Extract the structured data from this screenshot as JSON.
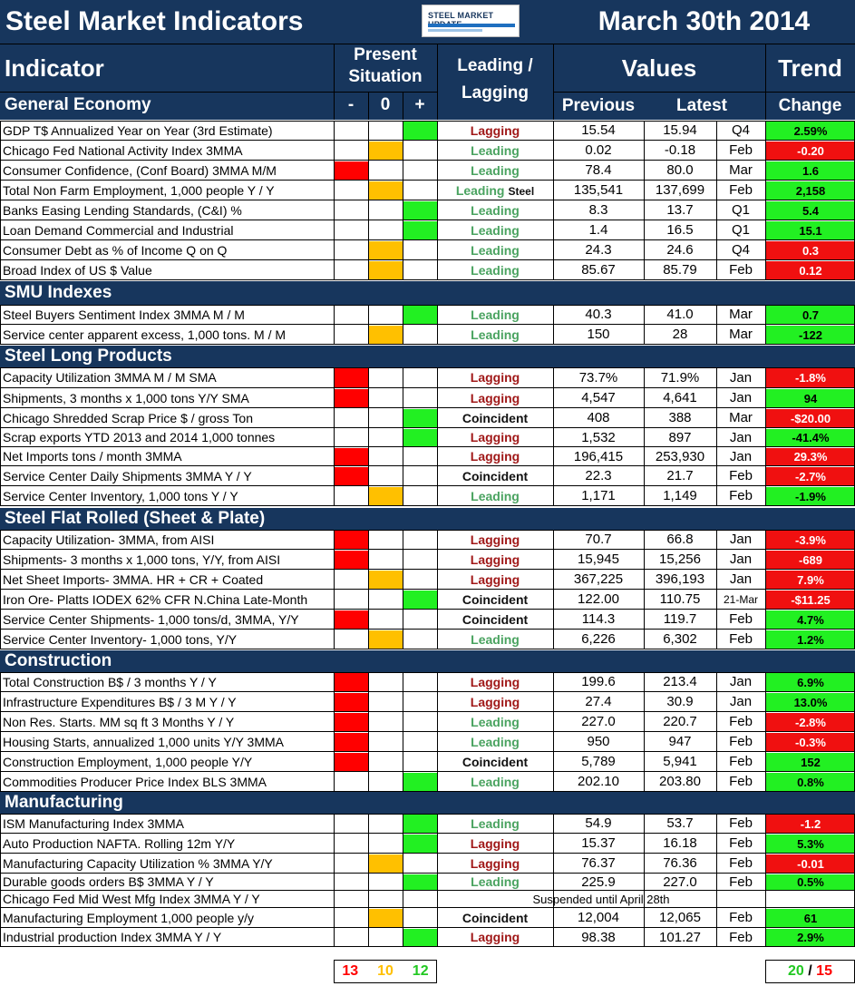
{
  "header": {
    "title": "Steel Market Indicators",
    "logo_text": "STEEL MARKET UPDATE",
    "date": "March 30th 2014"
  },
  "columns": {
    "indicator": "Indicator",
    "present_situation": "Present Situation",
    "leading_lagging": "Leading / Lagging",
    "values": "Values",
    "trend": "Trend",
    "minus": "-",
    "zero": "0",
    "plus": "+",
    "previous": "Previous",
    "latest": "Latest",
    "change": "Change"
  },
  "sections": [
    {
      "name": "General Economy",
      "rows": [
        {
          "indicator": "GDP T$ Annualized Year on Year (3rd Estimate)",
          "situation": "plus",
          "ll": "Lagging",
          "extra": "",
          "previous": "15.54",
          "latest": "15.94",
          "period": "Q4",
          "change": "2.59%",
          "change_color": "green"
        },
        {
          "indicator": "Chicago Fed National Activity Index 3MMA",
          "situation": "zero",
          "ll": "Leading",
          "extra": "",
          "previous": "0.02",
          "latest": "-0.18",
          "period": "Feb",
          "change": "-0.20",
          "change_color": "red"
        },
        {
          "indicator": "Consumer Confidence, (Conf Board) 3MMA M/M",
          "situation": "minus",
          "ll": "Leading",
          "extra": "",
          "previous": "78.4",
          "latest": "80.0",
          "period": "Mar",
          "change": "1.6",
          "change_color": "green"
        },
        {
          "indicator": "Total Non Farm Employment, 1,000 people Y / Y",
          "situation": "zero",
          "ll": "Leading",
          "extra": "Steel",
          "previous": "135,541",
          "latest": "137,699",
          "period": "Feb",
          "change": "2,158",
          "change_color": "green"
        },
        {
          "indicator": "Banks Easing Lending Standards, (C&I) %",
          "situation": "plus",
          "ll": "Leading",
          "extra": "",
          "previous": "8.3",
          "latest": "13.7",
          "period": "Q1",
          "change": "5.4",
          "change_color": "green"
        },
        {
          "indicator": "Loan Demand Commercial and Industrial",
          "situation": "plus",
          "ll": "Leading",
          "extra": "",
          "previous": "1.4",
          "latest": "16.5",
          "period": "Q1",
          "change": "15.1",
          "change_color": "green"
        },
        {
          "indicator": "Consumer Debt as % of Income Q on Q",
          "situation": "zero",
          "ll": "Leading",
          "extra": "",
          "previous": "24.3",
          "latest": "24.6",
          "period": "Q4",
          "change": "0.3",
          "change_color": "red"
        },
        {
          "indicator": "Broad Index of US $ Value",
          "situation": "zero",
          "ll": "Leading",
          "extra": "",
          "previous": "85.67",
          "latest": "85.79",
          "period": "Feb",
          "change": "0.12",
          "change_color": "red"
        }
      ]
    },
    {
      "name": "SMU Indexes",
      "rows": [
        {
          "indicator": "Steel Buyers Sentiment Index 3MMA M / M",
          "situation": "plus",
          "ll": "Leading",
          "extra": "",
          "previous": "40.3",
          "latest": "41.0",
          "period": "Mar",
          "change": "0.7",
          "change_color": "green"
        },
        {
          "indicator": "Service center apparent excess, 1,000 tons. M / M",
          "situation": "zero",
          "ll": "Leading",
          "extra": "",
          "previous": "150",
          "latest": "28",
          "period": "Mar",
          "change": "-122",
          "change_color": "green"
        }
      ]
    },
    {
      "name": "Steel Long Products",
      "rows": [
        {
          "indicator": "Capacity Utilization 3MMA  M / M SMA",
          "situation": "minus",
          "ll": "Lagging",
          "extra": "",
          "previous": "73.7%",
          "latest": "71.9%",
          "period": "Jan",
          "change": "-1.8%",
          "change_color": "red"
        },
        {
          "indicator": "Shipments, 3 months x 1,000 tons Y/Y SMA",
          "situation": "minus",
          "ll": "Lagging",
          "extra": "",
          "previous": "4,547",
          "latest": "4,641",
          "period": "Jan",
          "change": "94",
          "change_color": "green"
        },
        {
          "indicator": "Chicago Shredded Scrap Price $ / gross Ton",
          "situation": "plus",
          "ll": "Coincident",
          "extra": "",
          "previous": "408",
          "latest": "388",
          "period": "Mar",
          "change": "-$20.00",
          "change_color": "red"
        },
        {
          "indicator": "Scrap exports YTD 2013 and 2014 1,000 tonnes",
          "situation": "plus",
          "ll": "Lagging",
          "extra": "",
          "previous": "1,532",
          "latest": "897",
          "period": "Jan",
          "change": "-41.4%",
          "change_color": "green"
        },
        {
          "indicator": "Net Imports tons / month 3MMA",
          "situation": "minus",
          "ll": "Lagging",
          "extra": "",
          "previous": "196,415",
          "latest": "253,930",
          "period": "Jan",
          "change": "29.3%",
          "change_color": "red"
        },
        {
          "indicator": "Service Center Daily Shipments 3MMA Y / Y",
          "situation": "minus",
          "ll": "Coincident",
          "extra": "",
          "previous": "22.3",
          "latest": "21.7",
          "period": "Feb",
          "change": "-2.7%",
          "change_color": "red"
        },
        {
          "indicator": "Service Center Inventory, 1,000 tons Y / Y",
          "situation": "zero",
          "ll": "Leading",
          "extra": "",
          "previous": "1,171",
          "latest": "1,149",
          "period": "Feb",
          "change": "-1.9%",
          "change_color": "green"
        }
      ]
    },
    {
      "name": "Steel Flat Rolled (Sheet & Plate)",
      "rows": [
        {
          "indicator": "Capacity Utilization- 3MMA, from AISI",
          "situation": "minus",
          "ll": "Lagging",
          "extra": "",
          "previous": "70.7",
          "latest": "66.8",
          "period": "Jan",
          "change": "-3.9%",
          "change_color": "red"
        },
        {
          "indicator": "Shipments- 3 months x 1,000 tons, Y/Y, from AISI",
          "situation": "minus",
          "ll": "Lagging",
          "extra": "",
          "previous": "15,945",
          "latest": "15,256",
          "period": "Jan",
          "change": "-689",
          "change_color": "red"
        },
        {
          "indicator": "Net Sheet Imports- 3MMA. HR + CR + Coated",
          "situation": "zero",
          "ll": "Lagging",
          "extra": "",
          "previous": "367,225",
          "latest": "396,193",
          "period": "Jan",
          "change": "7.9%",
          "change_color": "red"
        },
        {
          "indicator": "Iron Ore- Platts IODEX 62% CFR N.China Late-Month",
          "situation": "plus",
          "ll": "Coincident",
          "extra": "",
          "previous": "122.00",
          "latest": "110.75",
          "period": "21-Mar",
          "change": "-$11.25",
          "change_color": "red"
        },
        {
          "indicator": "Service Center Shipments- 1,000 tons/d, 3MMA, Y/Y",
          "situation": "minus",
          "ll": "Coincident",
          "extra": "",
          "previous": "114.3",
          "latest": "119.7",
          "period": "Feb",
          "change": "4.7%",
          "change_color": "green"
        },
        {
          "indicator": "Service Center Inventory- 1,000 tons, Y/Y",
          "situation": "zero",
          "ll": "Leading",
          "extra": "",
          "previous": "6,226",
          "latest": "6,302",
          "period": "Feb",
          "change": "1.2%",
          "change_color": "green"
        }
      ]
    },
    {
      "name": "Construction",
      "rows": [
        {
          "indicator": "Total Construction B$ /  3 months Y / Y",
          "situation": "minus",
          "ll": "Lagging",
          "extra": "",
          "previous": "199.6",
          "latest": "213.4",
          "period": "Jan",
          "change": "6.9%",
          "change_color": "green"
        },
        {
          "indicator": "Infrastructure Expenditures B$ / 3 M    Y / Y",
          "situation": "minus",
          "ll": "Lagging",
          "extra": "",
          "previous": "27.4",
          "latest": "30.9",
          "period": "Jan",
          "change": "13.0%",
          "change_color": "green"
        },
        {
          "indicator": "Non Res. Starts. MM sq ft 3 Months   Y / Y",
          "situation": "minus",
          "ll": "Leading",
          "extra": "",
          "previous": "227.0",
          "latest": "220.7",
          "period": "Feb",
          "change": "-2.8%",
          "change_color": "red"
        },
        {
          "indicator": "Housing Starts, annualized 1,000 units Y/Y 3MMA",
          "situation": "minus",
          "ll": "Leading",
          "extra": "",
          "previous": "950",
          "latest": "947",
          "period": "Feb",
          "change": "-0.3%",
          "change_color": "red"
        },
        {
          "indicator": "Construction Employment, 1,000 people Y/Y",
          "situation": "minus",
          "ll": "Coincident",
          "extra": "",
          "previous": "5,789",
          "latest": "5,941",
          "period": "Feb",
          "change": "152",
          "change_color": "green"
        },
        {
          "indicator": "Commodities Producer Price Index BLS 3MMA",
          "situation": "plus",
          "ll": "Leading",
          "extra": "",
          "previous": "202.10",
          "latest": "203.80",
          "period": "Feb",
          "change": "0.8%",
          "change_color": "green"
        }
      ]
    },
    {
      "name": "Manufacturing",
      "rows": [
        {
          "indicator": "ISM Manufacturing Index 3MMA",
          "situation": "plus",
          "ll": "Leading",
          "extra": "",
          "previous": "54.9",
          "latest": "53.7",
          "period": "Feb",
          "change": "-1.2",
          "change_color": "red"
        },
        {
          "indicator": "Auto Production NAFTA. Rolling 12m Y/Y",
          "situation": "plus",
          "ll": "Lagging",
          "extra": "",
          "previous": "15.37",
          "latest": "16.18",
          "period": "Feb",
          "change": "5.3%",
          "change_color": "green"
        },
        {
          "indicator": "Manufacturing Capacity Utilization % 3MMA Y/Y",
          "situation": "zero",
          "ll": "Lagging",
          "extra": "",
          "previous": "76.37",
          "latest": "76.36",
          "period": "Feb",
          "change": "-0.01",
          "change_color": "red"
        },
        {
          "indicator": "Durable goods orders B$  3MMA Y / Y",
          "situation": "plus",
          "ll": "Leading",
          "extra": "",
          "previous": "225.9",
          "latest": "227.0",
          "period": "Feb",
          "change": "0.5%",
          "change_color": "green"
        },
        {
          "indicator": "Chicago Fed Mid West Mfg Index 3MMA Y / Y",
          "situation": "",
          "ll": "",
          "extra": "",
          "suspended": "Suspended until April 28th",
          "previous": "",
          "latest": "",
          "period": "",
          "change": "",
          "change_color": ""
        },
        {
          "indicator": "Manufacturing Employment 1,000 people y/y",
          "situation": "zero",
          "ll": "Coincident",
          "extra": "",
          "previous": "12,004",
          "latest": "12,065",
          "period": "Feb",
          "change": "61",
          "change_color": "green"
        },
        {
          "indicator": "Industrial production Index 3MMA Y / Y",
          "situation": "plus",
          "ll": "Lagging",
          "extra": "",
          "previous": "98.38",
          "latest": "101.27",
          "period": "Feb",
          "change": "2.9%",
          "change_color": "green"
        }
      ]
    }
  ],
  "totals": {
    "red": "13",
    "amber": "10",
    "green": "12",
    "trend_green": "20",
    "trend_sep": " / ",
    "trend_red": "15"
  },
  "colors": {
    "navy": "#17365d",
    "red": "#ff0000",
    "amber": "#ffc000",
    "green": "#22f022",
    "leading": "#4aa360",
    "lagging": "#a01818"
  }
}
